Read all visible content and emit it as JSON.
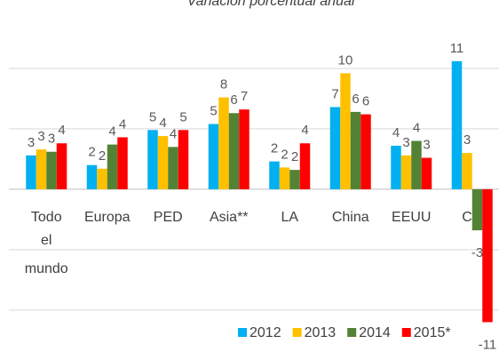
{
  "chart_data": {
    "type": "bar",
    "title": "Variación porcentual anual",
    "categories": [
      "Todo el mundo",
      "Europa",
      "PED",
      "Asia**",
      "LA",
      "China",
      "EEUU",
      "CR"
    ],
    "series": [
      {
        "name": "2012",
        "color": "#00b0f0",
        "values": [
          2.8,
          2.0,
          4.9,
          5.4,
          2.3,
          6.8,
          3.6,
          10.6
        ],
        "value_labels": [
          "3",
          "2",
          "5",
          "5",
          "2",
          "7",
          "4",
          "11"
        ]
      },
      {
        "name": "2013",
        "color": "#ffc000",
        "values": [
          3.3,
          1.7,
          4.4,
          7.6,
          1.8,
          9.6,
          2.8,
          3.0
        ],
        "value_labels": [
          "3",
          "2",
          "4",
          "8",
          "2",
          "10",
          "3",
          "3"
        ]
      },
      {
        "name": "2014",
        "color": "#548235",
        "values": [
          3.1,
          3.7,
          3.5,
          6.3,
          1.6,
          6.4,
          4.0,
          -3.4
        ],
        "value_labels": [
          "3",
          "4",
          "4",
          "6",
          "2",
          "6",
          "4",
          "-3"
        ]
      },
      {
        "name": "2015*",
        "color": "#ff0000",
        "values": [
          3.8,
          4.3,
          4.9,
          6.6,
          3.8,
          6.2,
          2.6,
          -11.0
        ],
        "value_labels": [
          "4",
          "4",
          "5",
          "7",
          "4",
          "6",
          "3",
          "-11"
        ]
      }
    ],
    "ylim": [
      -12,
      15
    ],
    "yticks": [
      -10,
      -5,
      0,
      5,
      10
    ],
    "grid": true,
    "legend": "bottom"
  }
}
